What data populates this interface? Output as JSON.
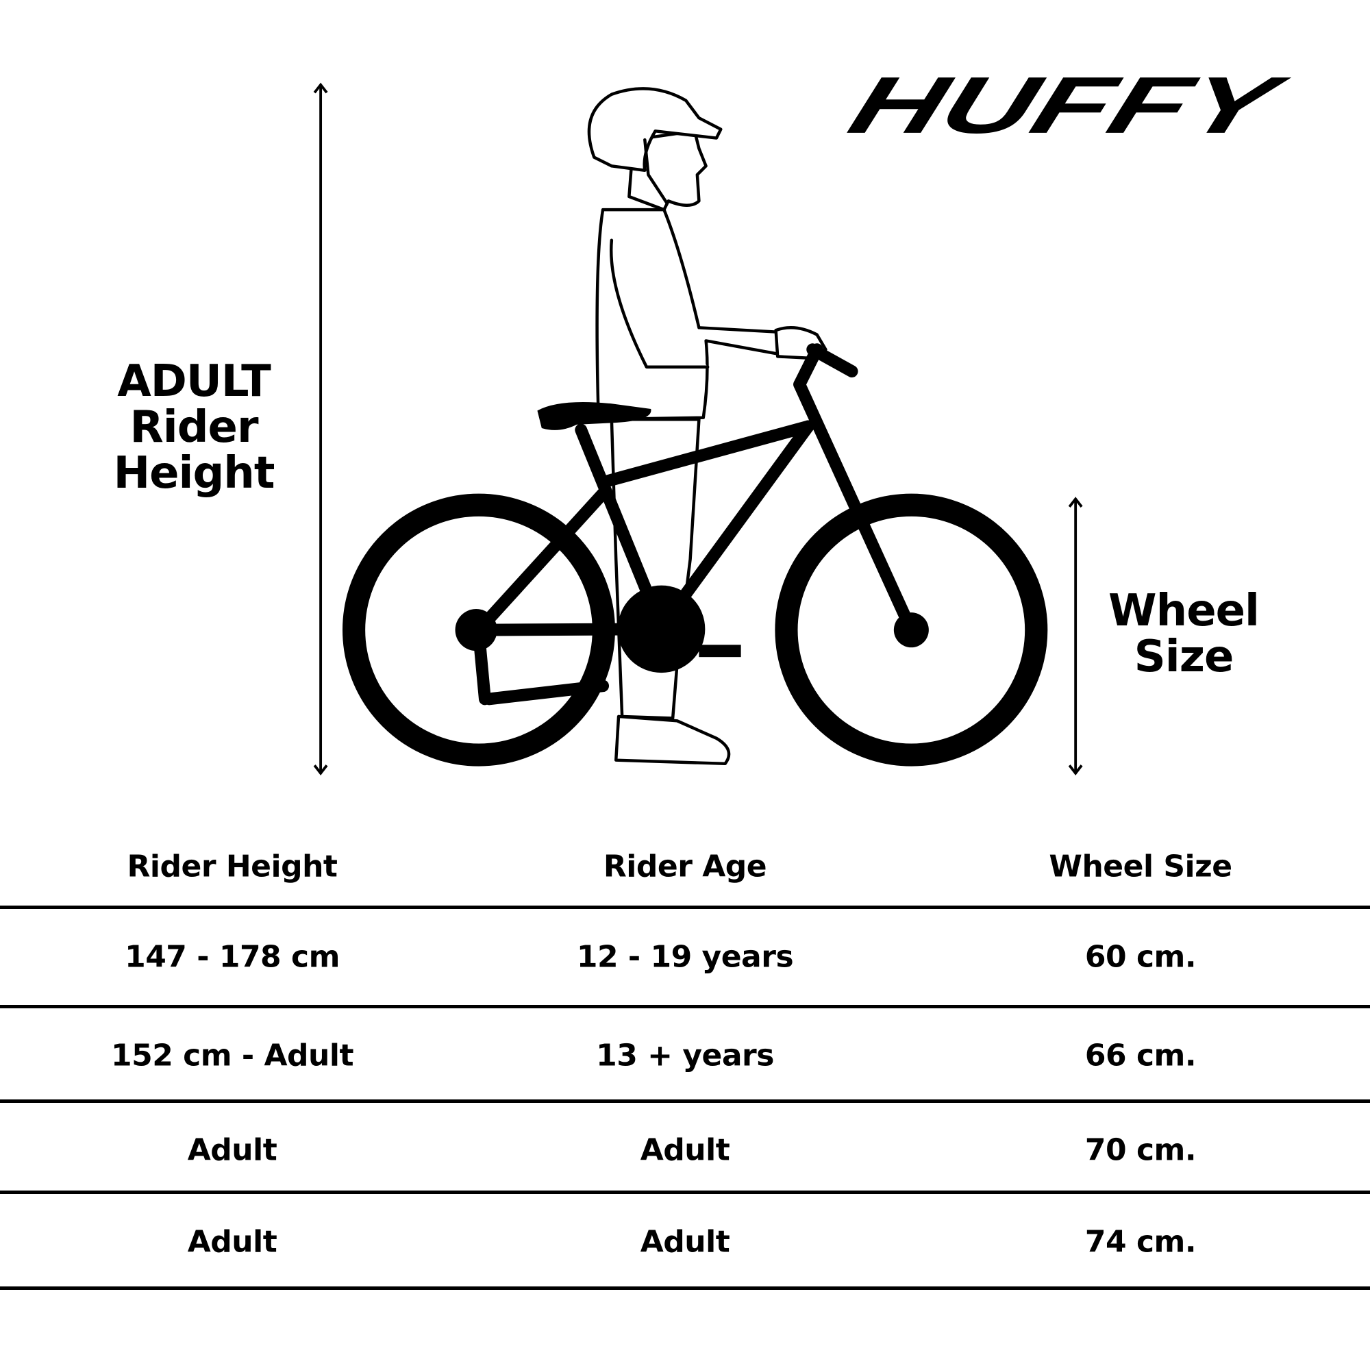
{
  "brand": {
    "logo_text": "HUFFY"
  },
  "diagram": {
    "height_label": [
      "ADULT",
      "Rider",
      "Height"
    ],
    "wheel_label": [
      "Wheel",
      "Size"
    ]
  },
  "table": {
    "headers": [
      "Rider Height",
      "Rider Age",
      "Wheel Size"
    ],
    "rows": [
      [
        "147 - 178 cm",
        "12 - 19 years",
        "60 cm."
      ],
      [
        "152 cm - Adult",
        "13 + years",
        "66 cm."
      ],
      [
        "Adult",
        "Adult",
        "70 cm."
      ],
      [
        "Adult",
        "Adult",
        "74 cm."
      ]
    ]
  }
}
